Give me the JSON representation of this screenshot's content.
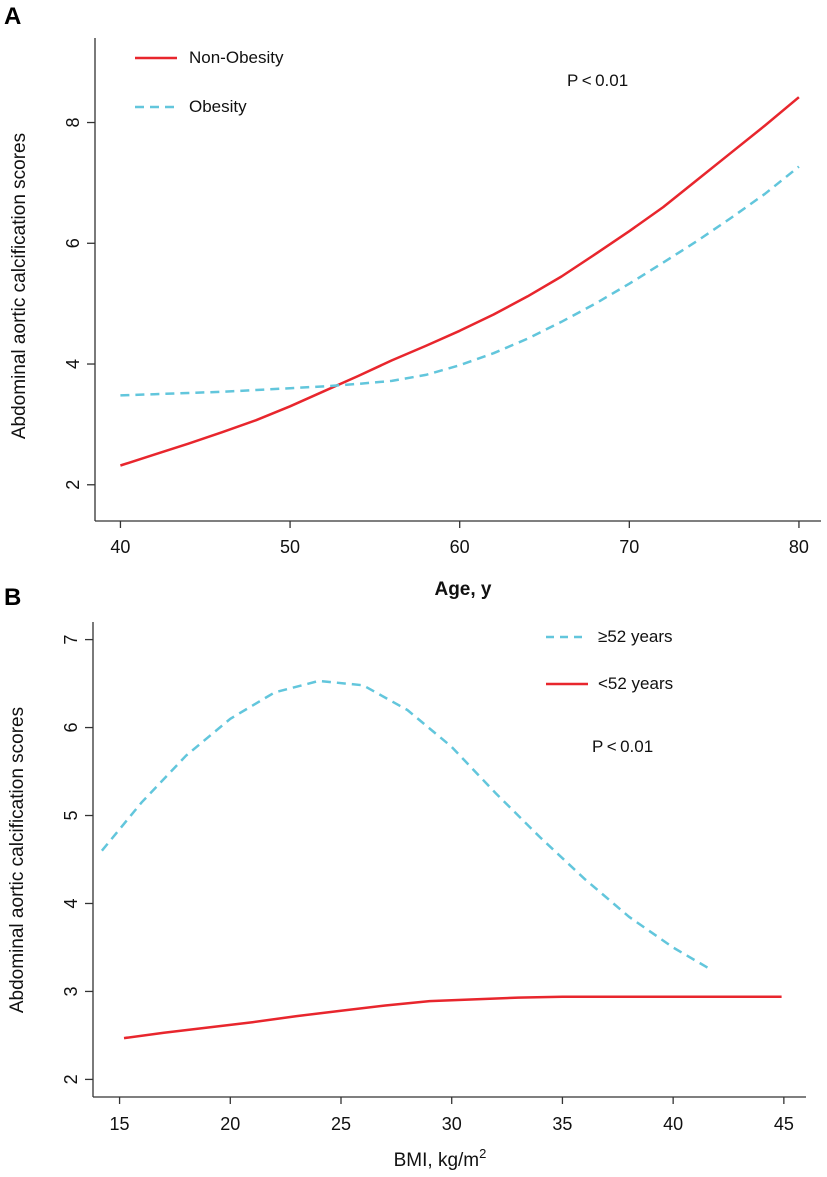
{
  "chart_data": [
    {
      "panel": "A",
      "type": "line",
      "xlabel": "Age, y",
      "ylabel": "Abdominal aortic calcification scores",
      "xlim": [
        38.5,
        81.3
      ],
      "ylim": [
        1.4,
        9.4
      ],
      "x_ticks": [
        40,
        50,
        60,
        70,
        80
      ],
      "y_ticks": [
        2,
        4,
        6,
        8
      ],
      "legend": "top-left",
      "annotation": "P < 0.01",
      "series": [
        {
          "name": "Non-Obesity",
          "style": "solid",
          "color": "#e8262d",
          "x": [
            40,
            42,
            44,
            46,
            48,
            50,
            52,
            54,
            56,
            58,
            60,
            62,
            64,
            66,
            68,
            70,
            72,
            74,
            76,
            78,
            80
          ],
          "y": [
            2.32,
            2.5,
            2.68,
            2.87,
            3.07,
            3.3,
            3.55,
            3.8,
            4.06,
            4.3,
            4.55,
            4.82,
            5.12,
            5.45,
            5.82,
            6.2,
            6.6,
            7.05,
            7.5,
            7.95,
            8.42
          ]
        },
        {
          "name": "Obesity",
          "style": "dashed",
          "color": "#62c6dc",
          "x": [
            40,
            42,
            44,
            46,
            48,
            50,
            52,
            54,
            56,
            58,
            60,
            62,
            64,
            66,
            68,
            70,
            72,
            74,
            76,
            78,
            80
          ],
          "y": [
            3.48,
            3.5,
            3.52,
            3.54,
            3.57,
            3.6,
            3.63,
            3.67,
            3.72,
            3.82,
            3.98,
            4.18,
            4.42,
            4.7,
            5.0,
            5.33,
            5.68,
            6.04,
            6.42,
            6.82,
            7.27
          ]
        }
      ]
    },
    {
      "panel": "B",
      "type": "line",
      "xlabel": "BMI, kg/m",
      "xlabel_sup": "2",
      "ylabel": "Abdominal aortic calcification scores",
      "xlim": [
        13.8,
        46.0
      ],
      "ylim": [
        1.8,
        7.2
      ],
      "x_ticks": [
        15,
        20,
        25,
        30,
        35,
        40,
        45
      ],
      "y_ticks": [
        2,
        3,
        4,
        5,
        6,
        7
      ],
      "legend": "top-right",
      "annotation": "P < 0.01",
      "series": [
        {
          "name": "≥52 years",
          "style": "dashed",
          "color": "#62c6dc",
          "x": [
            14.2,
            16,
            18,
            20,
            22,
            24,
            26,
            28,
            30,
            32,
            34,
            36,
            38,
            40,
            41.7
          ],
          "y": [
            4.6,
            5.15,
            5.68,
            6.1,
            6.4,
            6.53,
            6.48,
            6.2,
            5.78,
            5.25,
            4.75,
            4.28,
            3.85,
            3.5,
            3.25
          ]
        },
        {
          "name": "<52 years",
          "style": "solid",
          "color": "#e8262d",
          "x": [
            15.2,
            17,
            19,
            21,
            23,
            25,
            27,
            29,
            31,
            33,
            35,
            37,
            39,
            41,
            43,
            44.9
          ],
          "y": [
            2.47,
            2.53,
            2.59,
            2.65,
            2.72,
            2.78,
            2.84,
            2.89,
            2.91,
            2.93,
            2.94,
            2.94,
            2.94,
            2.94,
            2.94,
            2.94
          ]
        }
      ]
    }
  ]
}
